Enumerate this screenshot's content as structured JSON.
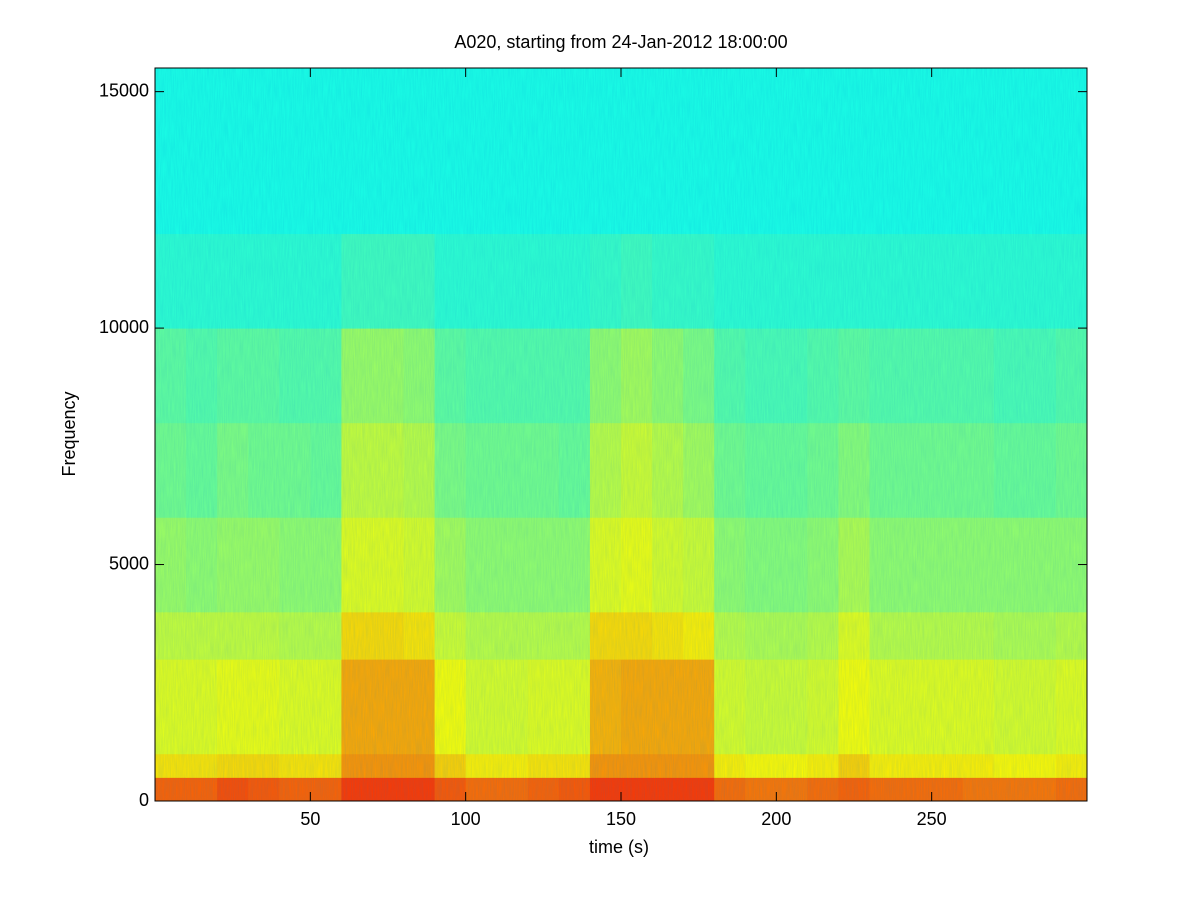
{
  "chart_data": {
    "type": "spectrogram",
    "title": "A020, starting from 24-Jan-2012 18:00:00",
    "xlabel": "time (s)",
    "ylabel": "Frequency",
    "colormap": "jet",
    "xlim": [
      0,
      300
    ],
    "ylim": [
      0,
      15500
    ],
    "xticks": [
      50,
      100,
      150,
      200,
      250
    ],
    "yticks": [
      0,
      5000,
      10000,
      15000
    ],
    "x_bins": [
      0,
      10,
      20,
      30,
      40,
      50,
      60,
      70,
      80,
      90,
      100,
      110,
      120,
      130,
      140,
      150,
      160,
      170,
      180,
      190,
      200,
      210,
      220,
      230,
      240,
      250,
      260,
      270,
      280,
      290,
      300
    ],
    "y_bins": [
      0,
      500,
      1000,
      3000,
      4000,
      6000,
      8000,
      10000,
      12000,
      15500
    ],
    "values": [
      [
        0.78,
        0.78,
        0.8,
        0.79,
        0.78,
        0.78,
        0.82,
        0.82,
        0.82,
        0.79,
        0.77,
        0.77,
        0.78,
        0.79,
        0.82,
        0.82,
        0.82,
        0.82,
        0.77,
        0.76,
        0.76,
        0.77,
        0.78,
        0.77,
        0.77,
        0.77,
        0.76,
        0.76,
        0.76,
        0.77
      ],
      [
        0.65,
        0.65,
        0.66,
        0.66,
        0.65,
        0.65,
        0.73,
        0.73,
        0.73,
        0.67,
        0.64,
        0.64,
        0.65,
        0.65,
        0.73,
        0.73,
        0.73,
        0.73,
        0.64,
        0.63,
        0.63,
        0.64,
        0.67,
        0.64,
        0.64,
        0.64,
        0.64,
        0.63,
        0.63,
        0.64
      ],
      [
        0.6,
        0.6,
        0.61,
        0.61,
        0.6,
        0.6,
        0.71,
        0.71,
        0.71,
        0.62,
        0.59,
        0.59,
        0.6,
        0.6,
        0.7,
        0.71,
        0.71,
        0.71,
        0.59,
        0.58,
        0.58,
        0.59,
        0.62,
        0.6,
        0.6,
        0.6,
        0.6,
        0.59,
        0.59,
        0.6
      ],
      [
        0.57,
        0.57,
        0.57,
        0.57,
        0.56,
        0.56,
        0.66,
        0.66,
        0.65,
        0.58,
        0.56,
        0.56,
        0.56,
        0.56,
        0.66,
        0.66,
        0.65,
        0.64,
        0.56,
        0.55,
        0.55,
        0.56,
        0.6,
        0.56,
        0.56,
        0.56,
        0.56,
        0.55,
        0.55,
        0.56
      ],
      [
        0.53,
        0.52,
        0.53,
        0.53,
        0.52,
        0.52,
        0.6,
        0.6,
        0.59,
        0.54,
        0.52,
        0.52,
        0.52,
        0.52,
        0.6,
        0.61,
        0.59,
        0.58,
        0.52,
        0.51,
        0.51,
        0.52,
        0.55,
        0.52,
        0.52,
        0.52,
        0.52,
        0.52,
        0.52,
        0.52
      ],
      [
        0.49,
        0.48,
        0.5,
        0.49,
        0.49,
        0.48,
        0.57,
        0.57,
        0.56,
        0.5,
        0.49,
        0.49,
        0.49,
        0.48,
        0.56,
        0.58,
        0.56,
        0.54,
        0.49,
        0.48,
        0.48,
        0.49,
        0.51,
        0.49,
        0.49,
        0.49,
        0.49,
        0.48,
        0.48,
        0.49
      ],
      [
        0.47,
        0.46,
        0.47,
        0.47,
        0.46,
        0.46,
        0.53,
        0.53,
        0.52,
        0.47,
        0.46,
        0.46,
        0.46,
        0.46,
        0.52,
        0.54,
        0.52,
        0.5,
        0.46,
        0.45,
        0.45,
        0.46,
        0.47,
        0.46,
        0.46,
        0.46,
        0.46,
        0.45,
        0.45,
        0.46
      ],
      [
        0.42,
        0.42,
        0.42,
        0.42,
        0.42,
        0.42,
        0.44,
        0.44,
        0.44,
        0.42,
        0.42,
        0.42,
        0.42,
        0.42,
        0.43,
        0.44,
        0.43,
        0.43,
        0.42,
        0.42,
        0.42,
        0.42,
        0.42,
        0.42,
        0.42,
        0.42,
        0.42,
        0.42,
        0.42,
        0.42
      ],
      [
        0.4,
        0.4,
        0.4,
        0.4,
        0.4,
        0.4,
        0.4,
        0.4,
        0.4,
        0.4,
        0.4,
        0.4,
        0.4,
        0.4,
        0.4,
        0.4,
        0.4,
        0.4,
        0.4,
        0.4,
        0.4,
        0.4,
        0.4,
        0.4,
        0.4,
        0.4,
        0.4,
        0.4,
        0.4,
        0.4
      ]
    ]
  }
}
